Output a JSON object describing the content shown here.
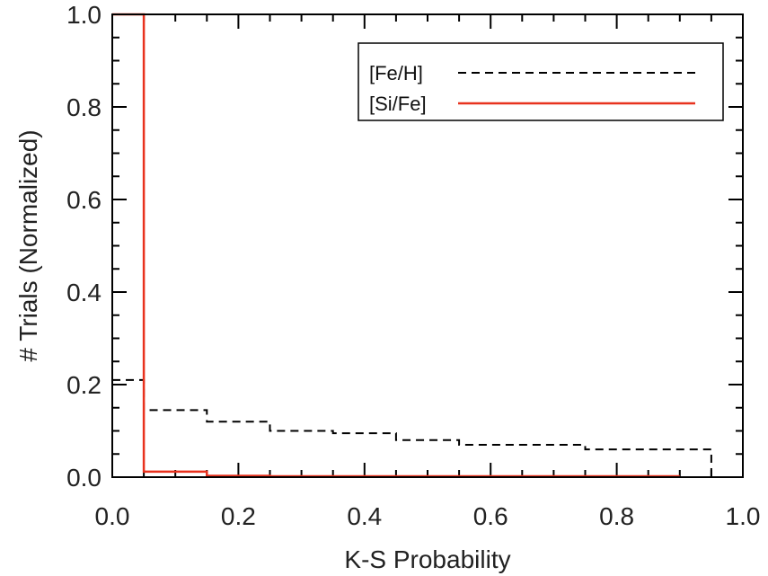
{
  "chart_data": {
    "type": "histogram-step",
    "xlabel": "K-S Probability",
    "ylabel": "# Trials (Normalized)",
    "xlim": [
      0.0,
      1.0
    ],
    "ylim": [
      0.0,
      1.0
    ],
    "x_ticks": [
      "0.0",
      "0.2",
      "0.4",
      "0.6",
      "0.8",
      "1.0"
    ],
    "y_ticks": [
      "0.0",
      "0.2",
      "0.4",
      "0.6",
      "0.8",
      "1.0"
    ],
    "x_tick_values": [
      0.0,
      0.2,
      0.4,
      0.6,
      0.8,
      1.0
    ],
    "y_tick_values": [
      0.0,
      0.2,
      0.4,
      0.6,
      0.8,
      1.0
    ],
    "legend_position": "top-right",
    "series": [
      {
        "name": "[Fe/H]",
        "style": "dashed",
        "color": "#000000",
        "bin_edges": [
          0.0,
          0.05,
          0.15,
          0.25,
          0.35,
          0.45,
          0.55,
          0.65,
          0.75,
          0.85,
          0.95
        ],
        "values": [
          0.21,
          0.145,
          0.12,
          0.1,
          0.095,
          0.08,
          0.07,
          0.07,
          0.06,
          0.06
        ]
      },
      {
        "name": "[Si/Fe]",
        "style": "solid",
        "color": "#e8321e",
        "bin_edges": [
          0.0,
          0.05,
          0.15,
          0.25,
          0.35,
          0.45,
          0.55,
          0.65,
          0.75,
          0.85,
          0.9
        ],
        "values": [
          1.0,
          0.012,
          0.003,
          0.002,
          0.002,
          0.002,
          0.002,
          0.002,
          0.002,
          0.002
        ]
      }
    ]
  }
}
